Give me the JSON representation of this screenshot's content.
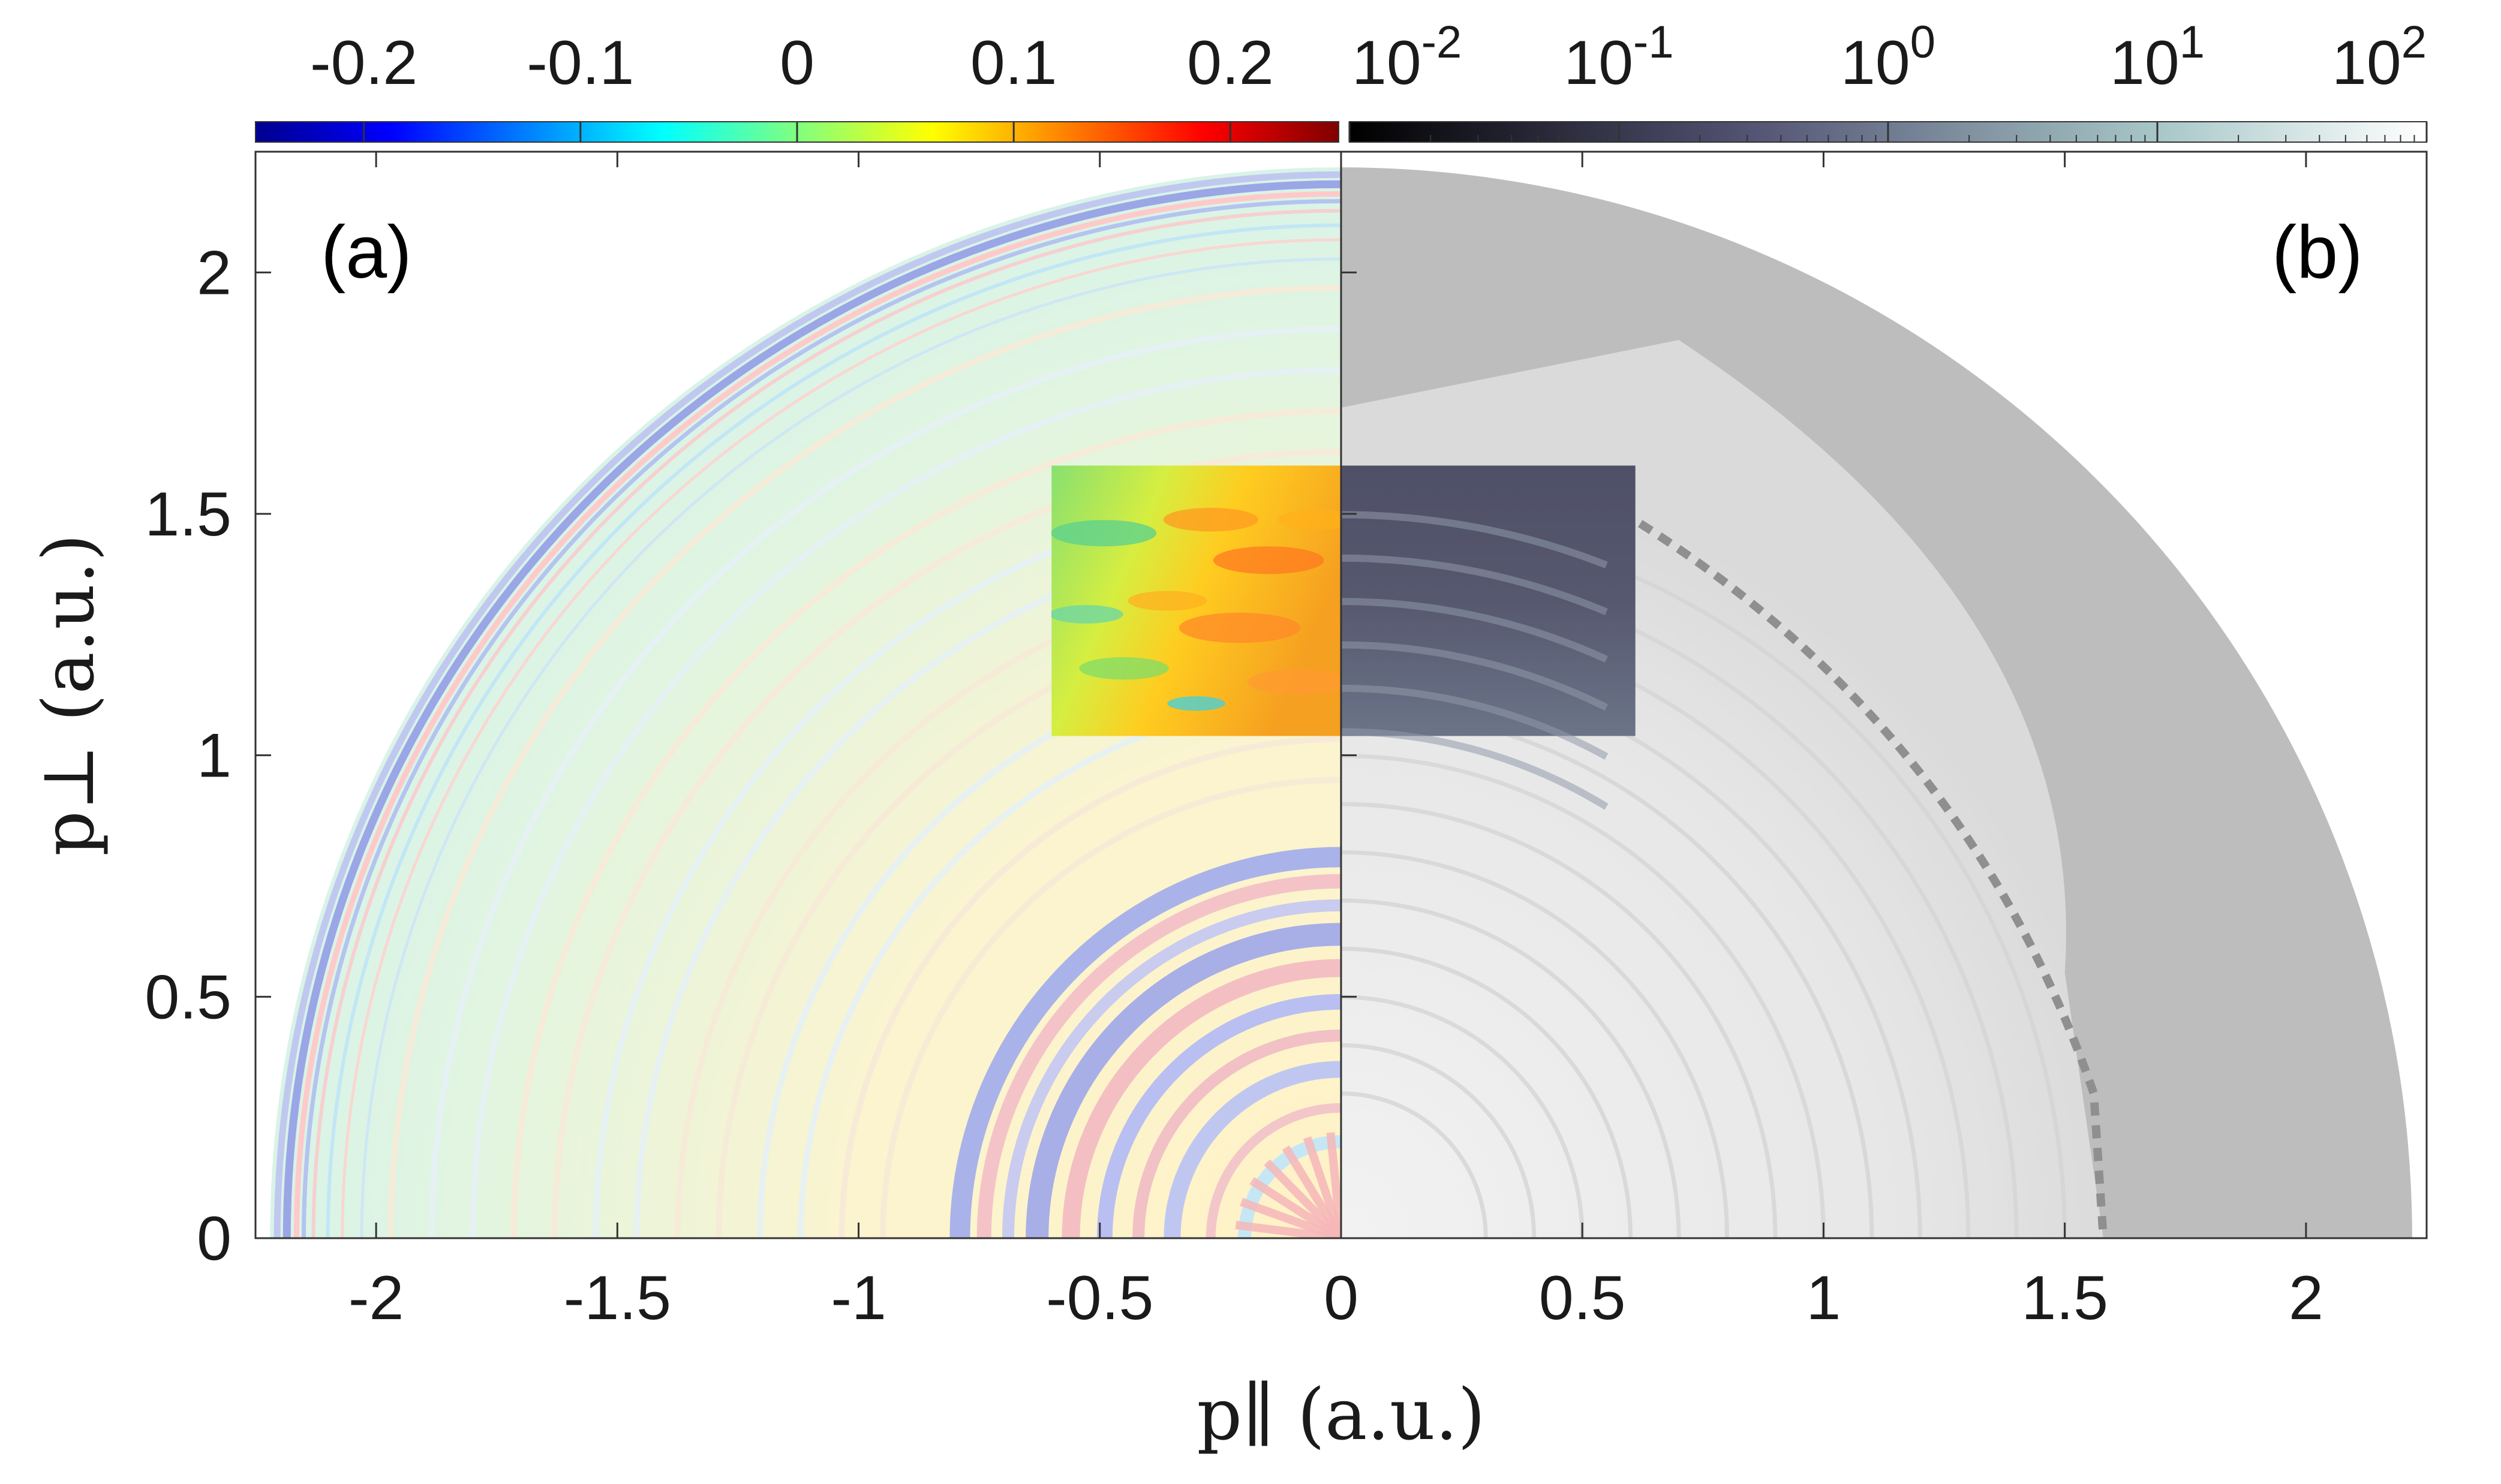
{
  "chart_data": [
    {
      "panel": "(a)",
      "type": "heatmap",
      "title": "",
      "xlabel": "p∥ (a.u.)",
      "ylabel": "p⊥ (a.u.)",
      "xlim": [
        -2.25,
        0
      ],
      "ylim": [
        0,
        2.25
      ],
      "xticks": [
        -2,
        -1.5,
        -1,
        -0.5,
        0
      ],
      "xtick_labels": [
        "-2",
        "-1.5",
        "-1",
        "-0.5",
        "0"
      ],
      "yticks": [
        0,
        0.5,
        1,
        1.5,
        2
      ],
      "ytick_labels": [
        "0",
        "0.5",
        "1",
        "1.5",
        "2"
      ],
      "colorbar": {
        "scale": "linear",
        "range": [
          -0.25,
          0.25
        ],
        "ticks": [
          -0.2,
          -0.1,
          0,
          0.1,
          0.2
        ],
        "tick_labels": [
          "-0.2",
          "-0.1",
          "0",
          "0.1",
          "0.2"
        ],
        "colormap": "jet"
      },
      "highlight_region": {
        "x": [
          -0.6,
          0
        ],
        "y": [
          1.04,
          1.6
        ]
      },
      "domain_radius": 2.22
    },
    {
      "panel": "(b)",
      "type": "heatmap",
      "title": "",
      "xlabel": "p∥ (a.u.)",
      "ylabel": "p⊥ (a.u.)",
      "xlim": [
        0,
        2.25
      ],
      "ylim": [
        0,
        2.25
      ],
      "xticks": [
        0.5,
        1,
        1.5,
        2
      ],
      "xtick_labels": [
        "0.5",
        "1",
        "1.5",
        "2"
      ],
      "colorbar": {
        "scale": "log",
        "range": [
          0.01,
          100
        ],
        "ticks": [
          0.01,
          0.1,
          1,
          10,
          100
        ],
        "tick_labels": [
          {
            "base": "10",
            "exp": "-2"
          },
          {
            "base": "10",
            "exp": "-1"
          },
          {
            "base": "10",
            "exp": "0"
          },
          {
            "base": "10",
            "exp": "1"
          },
          {
            "base": "10",
            "exp": "2"
          }
        ],
        "colormap": "bone"
      },
      "highlight_region": {
        "x": [
          0,
          0.61
        ],
        "y": [
          1.04,
          1.6
        ]
      },
      "domain_radius": 2.22
    }
  ],
  "colors": {
    "jet_blue": "#00008f",
    "jet_red": "#800000",
    "panel_b_gray": "#bdbdbd",
    "axis": "#333333"
  }
}
